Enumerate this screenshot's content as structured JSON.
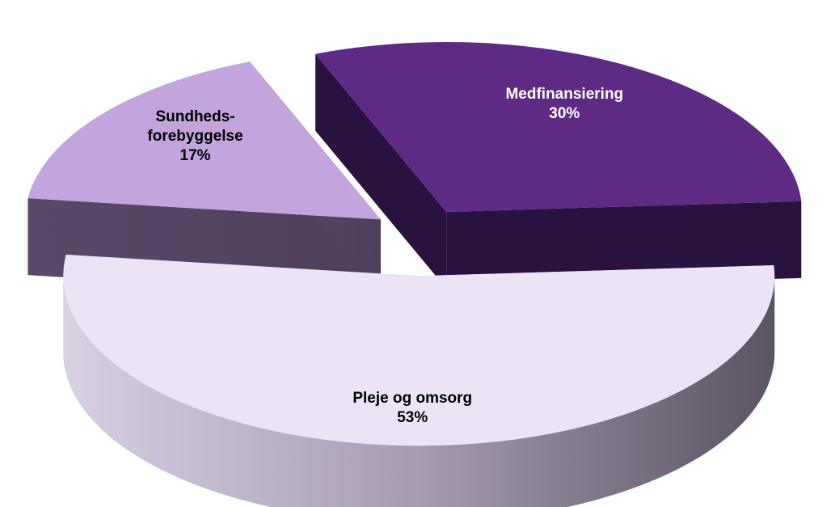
{
  "chart_data": {
    "type": "pie",
    "three_d": true,
    "exploded": true,
    "legend": "none",
    "slices": [
      {
        "label": "Medfinansiering",
        "label_lines": [
          "Medfinansiering"
        ],
        "value": 30,
        "value_label": "30%",
        "color": "#5e2a84",
        "label_color": "#ffffff"
      },
      {
        "label": "Pleje og omsorg",
        "label_lines": [
          "Pleje og omsorg"
        ],
        "value": 53,
        "value_label": "53%",
        "color": "#ece3f6",
        "label_color": "#000000"
      },
      {
        "label": "Sundheds-forebyggelse",
        "label_lines": [
          "Sundheds-",
          "forebyggelse"
        ],
        "value": 17,
        "value_label": "17%",
        "color": "#c3a4dd",
        "label_color": "#000000"
      }
    ]
  }
}
